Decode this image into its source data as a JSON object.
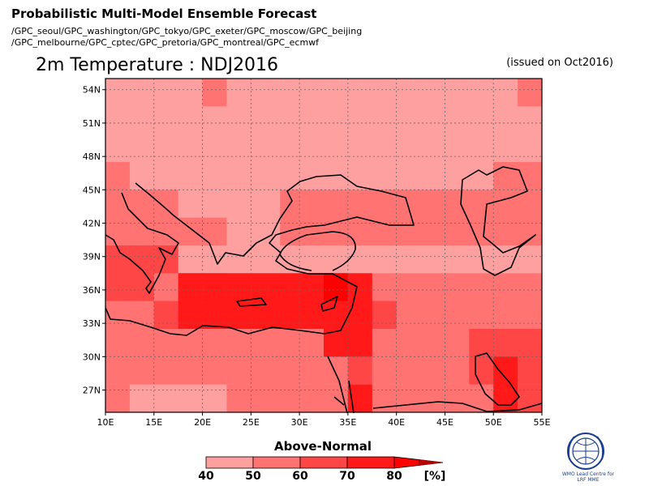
{
  "header": {
    "title": "Probabilistic Multi-Model Ensemble Forecast",
    "gpc_lines": [
      "/GPC_seoul/GPC_washington/GPC_tokyo/GPC_exeter/GPC_moscow/GPC_beijing",
      "/GPC_melbourne/GPC_cptec/GPC_pretoria/GPC_montreal/GPC_ecmwf"
    ]
  },
  "chart_data": {
    "type": "heatmap",
    "title": "2m Temperature : NDJ2016",
    "subtitle": "(issued on Oct2016)",
    "x_ticks": [
      "10E",
      "15E",
      "20E",
      "25E",
      "30E",
      "35E",
      "40E",
      "45E",
      "50E",
      "55E"
    ],
    "y_ticks": [
      "54N",
      "51N",
      "48N",
      "45N",
      "42N",
      "39N",
      "36N",
      "33N",
      "30N",
      "27N"
    ],
    "xlim": [
      10,
      55
    ],
    "ylim": [
      25,
      55
    ],
    "colorbar": {
      "title": "Above-Normal",
      "bounds": [
        "40",
        "50",
        "60",
        "70",
        "80"
      ],
      "unit": "[%]",
      "colors": [
        "#ffa0a0",
        "#ff7373",
        "#ff4646",
        "#ff1919",
        "#ff0000",
        "#b40000"
      ]
    },
    "grid_resolution_deg": 2.5,
    "class_bins": "0 = 40-50%, 1 = 50-60%, 2 = 60-70%, 3 = 70-80%, 4 = >80%",
    "regions": [
      {
        "lon": [
          10,
          55
        ],
        "lat": [
          25,
          55
        ],
        "class": 0
      },
      {
        "lon": [
          52.5,
          55
        ],
        "lat": [
          52.5,
          55
        ],
        "class": 1
      },
      {
        "lon": [
          20,
          22.5
        ],
        "lat": [
          52.5,
          55
        ],
        "class": 1
      },
      {
        "lon": [
          10,
          12.5
        ],
        "lat": [
          37.5,
          47.5
        ],
        "class": 1
      },
      {
        "lon": [
          12.5,
          17.5
        ],
        "lat": [
          37.5,
          45
        ],
        "class": 1
      },
      {
        "lon": [
          17.5,
          22.5
        ],
        "lat": [
          40,
          42.5
        ],
        "class": 1
      },
      {
        "lon": [
          28,
          45
        ],
        "lat": [
          40,
          45
        ],
        "class": 1
      },
      {
        "lon": [
          45,
          50
        ],
        "lat": [
          40,
          45
        ],
        "class": 1
      },
      {
        "lon": [
          50,
          55
        ],
        "lat": [
          40,
          47.5
        ],
        "class": 1
      },
      {
        "lon": [
          10,
          55
        ],
        "lat": [
          27.5,
          37.5
        ],
        "class": 1
      },
      {
        "lon": [
          10,
          12.5
        ],
        "lat": [
          25,
          27.5
        ],
        "class": 1
      },
      {
        "lon": [
          22.5,
          55
        ],
        "lat": [
          25,
          27.5
        ],
        "class": 1
      },
      {
        "lon": [
          10,
          15
        ],
        "lat": [
          35,
          40
        ],
        "class": 2
      },
      {
        "lon": [
          15,
          17.5
        ],
        "lat": [
          37.5,
          40
        ],
        "class": 2
      },
      {
        "lon": [
          17.5,
          22.5
        ],
        "lat": [
          35,
          37.5
        ],
        "class": 2
      },
      {
        "lon": [
          15,
          35
        ],
        "lat": [
          32.5,
          35
        ],
        "class": 2
      },
      {
        "lon": [
          35,
          40
        ],
        "lat": [
          32.5,
          35
        ],
        "class": 2
      },
      {
        "lon": [
          35,
          37.5
        ],
        "lat": [
          27.5,
          30
        ],
        "class": 2
      },
      {
        "lon": [
          47.5,
          55
        ],
        "lat": [
          27.5,
          32.5
        ],
        "class": 2
      },
      {
        "lon": [
          52.5,
          55
        ],
        "lat": [
          25,
          27.5
        ],
        "class": 2
      },
      {
        "lon": [
          17.5,
          37.5
        ],
        "lat": [
          32.5,
          37.5
        ],
        "class": 3
      },
      {
        "lon": [
          32.5,
          37.5
        ],
        "lat": [
          30,
          32.5
        ],
        "class": 3
      },
      {
        "lon": [
          35,
          37.5
        ],
        "lat": [
          25,
          27.5
        ],
        "class": 3
      },
      {
        "lon": [
          50,
          52.5
        ],
        "lat": [
          25,
          30
        ],
        "class": 3
      },
      {
        "lon": [
          32.5,
          35
        ],
        "lat": [
          35,
          37.5
        ],
        "class": 4
      }
    ]
  }
}
